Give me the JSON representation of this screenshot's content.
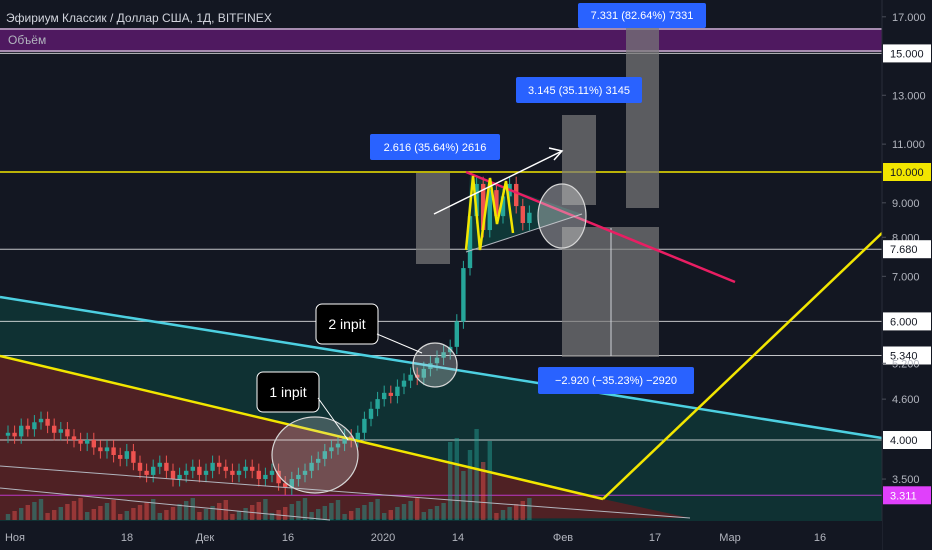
{
  "header": {
    "title": "Эфириум Классик / Доллар США, 1Д, BITFINEX",
    "volume_label": "Объём"
  },
  "colors": {
    "background": "#131722",
    "candle_up": "#26a69a",
    "candle_down": "#ef5350",
    "teal_channel": "#4dd0e1",
    "yellow_line": "#f2e600",
    "red_trend": "#e91e63",
    "magenta_level": "#e040fb",
    "callout_blue": "#2962ff"
  },
  "chart_data": {
    "type": "candlestick",
    "symbol": "Эфириум Классик / Доллар США, 1Д, BITFINEX",
    "y_scale": "log",
    "y_ticks": [
      "17.000",
      "15.000",
      "13.000",
      "11.000",
      "10.000",
      "9.000",
      "8.000",
      "7.680",
      "7.000",
      "6.000",
      "5.340",
      "5.200",
      "4.600",
      "4.000",
      "3.500",
      "3.311"
    ],
    "x_ticks": [
      "Ноя",
      "18",
      "Дек",
      "16",
      "2020",
      "14",
      "Фев",
      "17",
      "Мар",
      "16"
    ],
    "levels": [
      {
        "value": 15.0,
        "label": "15.000",
        "color": "#ffffff"
      },
      {
        "value": 10.0,
        "label": "10.000",
        "color": "#f2e600"
      },
      {
        "value": 7.68,
        "label": "7.680",
        "color": "#ffffff"
      },
      {
        "value": 6.0,
        "label": "6.000",
        "color": "#ffffff"
      },
      {
        "value": 5.34,
        "label": "5.340",
        "color": "#ffffff"
      },
      {
        "value": 4.0,
        "label": "4.000",
        "color": "#ffffff"
      },
      {
        "value": 3.311,
        "label": "3.311",
        "color": "#e040fb"
      }
    ],
    "measurements": [
      {
        "label": "2.616 (35.64%) 2616"
      },
      {
        "label": "3.145 (35.11%) 3145"
      },
      {
        "label": "7.331 (82.64%) 7331"
      },
      {
        "label": "−2.920 (−35.23%) −2920"
      }
    ],
    "annotations": [
      "1 inpit",
      "2 inpit"
    ]
  }
}
